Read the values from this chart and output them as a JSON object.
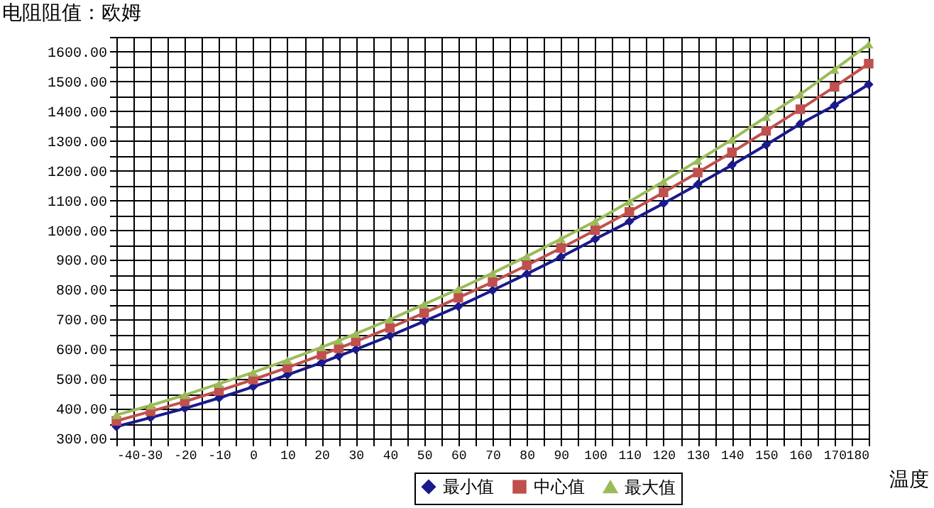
{
  "chart_data": {
    "type": "line",
    "ylabel": "电阻阻值：欧姆",
    "xlabel": "温度",
    "x": [
      -40,
      -30,
      -20,
      -10,
      0,
      10,
      20,
      25,
      30,
      40,
      50,
      60,
      70,
      80,
      90,
      100,
      110,
      120,
      130,
      140,
      150,
      160,
      170,
      180
    ],
    "series": [
      {
        "name": "最小值",
        "color": "#1a1a8c",
        "marker": "diamond",
        "values": [
          340,
          370,
          401,
          436,
          474,
          514,
          555,
          577,
          599,
          645,
          694,
          744,
          798,
          853,
          910,
          970,
          1029,
          1090,
          1154,
          1219,
          1287,
          1358,
          1420,
          1490
        ]
      },
      {
        "name": "中心值",
        "color": "#c0504d",
        "marker": "square",
        "values": [
          359,
          391,
          424,
          460,
          498,
          538,
          581,
          603,
          626,
          672,
          722,
          773,
          826,
          882,
          940,
          1000,
          1062,
          1127,
          1194,
          1262,
          1334,
          1407,
          1482,
          1560
        ]
      },
      {
        "name": "最大值",
        "color": "#9bbb59",
        "marker": "triangle",
        "values": [
          379,
          411,
          446,
          484,
          522,
          563,
          607,
          629,
          652,
          700,
          751,
          802,
          856,
          912,
          971,
          1030,
          1096,
          1164,
          1234,
          1305,
          1381,
          1457,
          1540,
          1625
        ]
      }
    ],
    "xlim": [
      -40,
      180
    ],
    "xticks": [
      -40,
      {
        "value": -35,
        "label": null
      },
      -30,
      {
        "value": -25,
        "label": null
      },
      -20,
      {
        "value": -15,
        "label": null
      },
      -10,
      {
        "value": -5,
        "label": null
      },
      0,
      {
        "value": 5,
        "label": null
      },
      10,
      {
        "value": 15,
        "label": null
      },
      20,
      {
        "value": 25,
        "label": null
      },
      30,
      {
        "value": 35,
        "label": null
      },
      40,
      {
        "value": 45,
        "label": null
      },
      50,
      {
        "value": 55,
        "label": null
      },
      60,
      {
        "value": 65,
        "label": null
      },
      70,
      {
        "value": 75,
        "label": null
      },
      80,
      {
        "value": 85,
        "label": null
      },
      90,
      {
        "value": 95,
        "label": null
      },
      100,
      {
        "value": 105,
        "label": null
      },
      110,
      {
        "value": 115,
        "label": null
      },
      120,
      {
        "value": 125,
        "label": null
      },
      130,
      {
        "value": 135,
        "label": null
      },
      140,
      {
        "value": 145,
        "label": null
      },
      150,
      {
        "value": 155,
        "label": null
      },
      160,
      {
        "value": 165,
        "label": null
      },
      170,
      {
        "value": 175,
        "label": null
      },
      180
    ],
    "ylim": [
      300,
      1650
    ],
    "yticks": [
      {
        "value": 300,
        "label": "300.00"
      },
      {
        "value": 350,
        "label": null
      },
      {
        "value": 400,
        "label": "400.00"
      },
      {
        "value": 450,
        "label": null
      },
      {
        "value": 500,
        "label": "500.00"
      },
      {
        "value": 550,
        "label": null
      },
      {
        "value": 600,
        "label": "600.00"
      },
      {
        "value": 650,
        "label": null
      },
      {
        "value": 700,
        "label": "700.00"
      },
      {
        "value": 750,
        "label": null
      },
      {
        "value": 800,
        "label": "800.00"
      },
      {
        "value": 850,
        "label": null
      },
      {
        "value": 900,
        "label": "900.00"
      },
      {
        "value": 950,
        "label": null
      },
      {
        "value": 1000,
        "label": "1000.00"
      },
      {
        "value": 1050,
        "label": null
      },
      {
        "value": 1100,
        "label": "1100.00"
      },
      {
        "value": 1150,
        "label": null
      },
      {
        "value": 1200,
        "label": "1200.00"
      },
      {
        "value": 1250,
        "label": null
      },
      {
        "value": 1300,
        "label": "1300.00"
      },
      {
        "value": 1350,
        "label": null
      },
      {
        "value": 1400,
        "label": "1400.00"
      },
      {
        "value": 1450,
        "label": null
      },
      {
        "value": 1500,
        "label": "1500.00"
      },
      {
        "value": 1550,
        "label": null
      },
      {
        "value": 1600,
        "label": "1600.00"
      },
      {
        "value": 1650,
        "label": null
      }
    ],
    "grid": true,
    "legend": "bottom",
    "line_style": "solid"
  }
}
